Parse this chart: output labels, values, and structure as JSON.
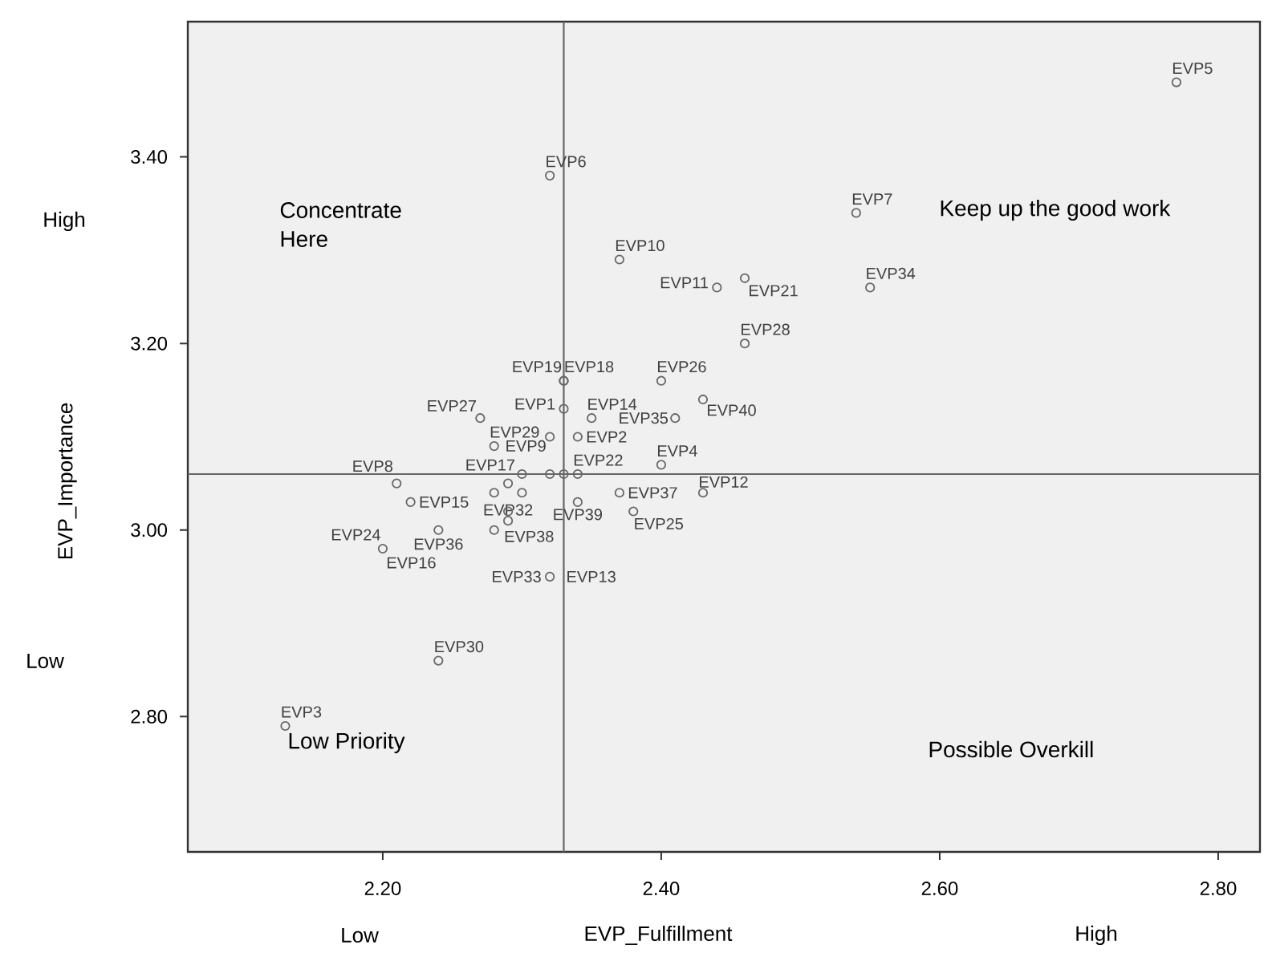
{
  "chart_data": {
    "type": "scatter",
    "xlabel": "EVP_Fulfillment",
    "ylabel": "EVP_Importance",
    "x": [
      2.77,
      2.32,
      2.54,
      2.37,
      2.44,
      2.46,
      2.55,
      2.46,
      2.33,
      2.33,
      2.4,
      2.35,
      2.33,
      2.27,
      2.41,
      2.43,
      2.34,
      2.4,
      2.28,
      2.32,
      2.3,
      2.21,
      2.34,
      2.43,
      2.37,
      2.22,
      2.29,
      2.34,
      2.38,
      2.28,
      2.2,
      2.24,
      2.32,
      2.29,
      2.28,
      2.24,
      2.13,
      2.29,
      2.32,
      2.33,
      2.3
    ],
    "values": [
      3.48,
      3.38,
      3.34,
      3.29,
      3.26,
      3.27,
      3.26,
      3.2,
      3.16,
      3.16,
      3.16,
      3.12,
      3.13,
      3.12,
      3.12,
      3.14,
      3.1,
      3.07,
      3.09,
      3.1,
      3.06,
      3.05,
      3.06,
      3.04,
      3.04,
      3.03,
      3.01,
      3.03,
      3.02,
      3.0,
      2.98,
      3.0,
      2.95,
      3.02,
      3.04,
      2.86,
      2.79,
      3.05,
      3.06,
      3.06,
      3.04
    ],
    "color": "#666666",
    "marker": "circle",
    "xlim": [
      2.06,
      2.83
    ],
    "ylim": [
      2.655,
      3.545
    ],
    "xticks": [
      {
        "value": 2.2,
        "label": "2.20"
      },
      {
        "value": 2.4,
        "label": "2.40"
      },
      {
        "value": 2.6,
        "label": "2.60"
      },
      {
        "value": 2.8,
        "label": "2.80"
      }
    ],
    "yticks": [
      {
        "value": 2.8,
        "label": "2.80"
      },
      {
        "value": 3.0,
        "label": "3.00"
      },
      {
        "value": 3.2,
        "label": "3.20"
      },
      {
        "value": 3.4,
        "label": "3.40"
      }
    ],
    "ref_lines": [
      {
        "axis": "x",
        "value": 2.33,
        "color": "#666666"
      },
      {
        "axis": "y",
        "value": 3.06,
        "color": "#666666"
      }
    ],
    "grid": false,
    "annotations": [
      "Concentrate Here",
      "Keep up the good work",
      "Low Priority",
      "Possible Overkill",
      "High",
      "Low",
      "Low",
      "High",
      {
        "text": "EVP5",
        "x": 2.77,
        "y": 3.48
      },
      {
        "text": "EVP6",
        "x": 2.32,
        "y": 3.38
      },
      {
        "text": "EVP7",
        "x": 2.54,
        "y": 3.34
      },
      {
        "text": "EVP10",
        "x": 2.37,
        "y": 3.29
      },
      {
        "text": "EVP11",
        "x": 2.44,
        "y": 3.26
      },
      {
        "text": "EVP21",
        "x": 2.46,
        "y": 3.27
      },
      {
        "text": "EVP34",
        "x": 2.55,
        "y": 3.26
      },
      {
        "text": "EVP28",
        "x": 2.46,
        "y": 3.2
      },
      {
        "text": "EVP19",
        "x": 2.33,
        "y": 3.16
      },
      {
        "text": "EVP18",
        "x": 2.33,
        "y": 3.16
      },
      {
        "text": "EVP26",
        "x": 2.4,
        "y": 3.16
      },
      {
        "text": "EVP14",
        "x": 2.35,
        "y": 3.12
      },
      {
        "text": "EVP1",
        "x": 2.33,
        "y": 3.13
      },
      {
        "text": "EVP27",
        "x": 2.27,
        "y": 3.12
      },
      {
        "text": "EVP35",
        "x": 2.41,
        "y": 3.12
      },
      {
        "text": "EVP40",
        "x": 2.43,
        "y": 3.14
      },
      {
        "text": "EVP2",
        "x": 2.34,
        "y": 3.1
      },
      {
        "text": "EVP4",
        "x": 2.4,
        "y": 3.07
      },
      {
        "text": "EVP29",
        "x": 2.28,
        "y": 3.09
      },
      {
        "text": "EVP9",
        "x": 2.32,
        "y": 3.1
      },
      {
        "text": "EVP17",
        "x": 2.3,
        "y": 3.06
      },
      {
        "text": "EVP8",
        "x": 2.21,
        "y": 3.05
      },
      {
        "text": "EVP22",
        "x": 2.34,
        "y": 3.06
      },
      {
        "text": "EVP12",
        "x": 2.43,
        "y": 3.04
      },
      {
        "text": "EVP37",
        "x": 2.37,
        "y": 3.04
      },
      {
        "text": "EVP15",
        "x": 2.22,
        "y": 3.03
      },
      {
        "text": "EVP32",
        "x": 2.29,
        "y": 3.01
      },
      {
        "text": "EVP39",
        "x": 2.34,
        "y": 3.03
      },
      {
        "text": "EVP25",
        "x": 2.38,
        "y": 3.02
      },
      {
        "text": "EVP38",
        "x": 2.28,
        "y": 3.0
      },
      {
        "text": "EVP24",
        "x": 2.2,
        "y": 2.98
      },
      {
        "text": "EVP16",
        "x": 2.2,
        "y": 2.98
      },
      {
        "text": "EVP13",
        "x": 2.32,
        "y": 2.95
      },
      {
        "text": "EVP33",
        "x": 2.32,
        "y": 2.95
      },
      {
        "text": "EVP36",
        "x": 2.24,
        "y": 3.0
      },
      {
        "text": "EVP30",
        "x": 2.24,
        "y": 2.86
      },
      {
        "text": "EVP3",
        "x": 2.13,
        "y": 2.79
      }
    ]
  }
}
